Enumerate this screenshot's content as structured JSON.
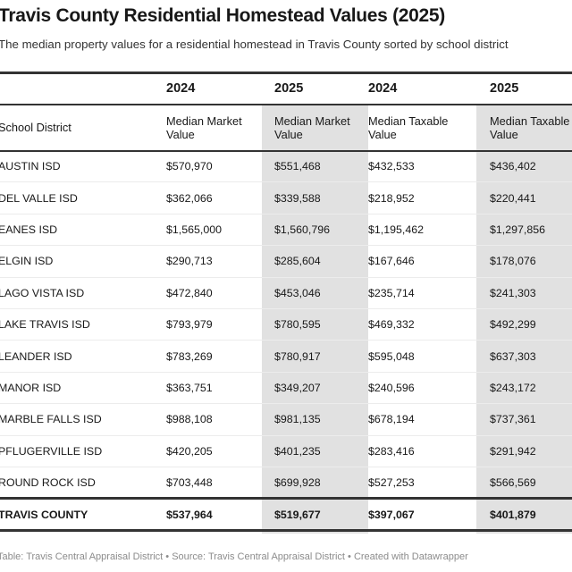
{
  "title": "Travis County Residential Homestead Values (2025)",
  "subtitle": "The median property values for a residential homestead in Travis County sorted by school district",
  "chart_data": {
    "type": "table",
    "years": [
      "",
      "2024",
      "2025",
      "2024",
      "2025"
    ],
    "columns": [
      "School District",
      "Median Market Value",
      "Median Market Value",
      "Median Taxable Value",
      "Median Taxable Value"
    ],
    "highlight_color": "#e1e1e1",
    "rows": [
      [
        "AUSTIN ISD",
        "$570,970",
        "$551,468",
        "$432,533",
        "$436,402"
      ],
      [
        "DEL VALLE ISD",
        "$362,066",
        "$339,588",
        "$218,952",
        "$220,441"
      ],
      [
        "EANES ISD",
        "$1,565,000",
        "$1,560,796",
        "$1,195,462",
        "$1,297,856"
      ],
      [
        "ELGIN ISD",
        "$290,713",
        "$285,604",
        "$167,646",
        "$178,076"
      ],
      [
        "LAGO VISTA ISD",
        "$472,840",
        "$453,046",
        "$235,714",
        "$241,303"
      ],
      [
        "LAKE TRAVIS ISD",
        "$793,979",
        "$780,595",
        "$469,332",
        "$492,299"
      ],
      [
        "LEANDER ISD",
        "$783,269",
        "$780,917",
        "$595,048",
        "$637,303"
      ],
      [
        "MANOR ISD",
        "$363,751",
        "$349,207",
        "$240,596",
        "$243,172"
      ],
      [
        "MARBLE FALLS ISD",
        "$988,108",
        "$981,135",
        "$678,194",
        "$737,361"
      ],
      [
        "PFLUGERVILLE ISD",
        "$420,205",
        "$401,235",
        "$283,416",
        "$291,942"
      ],
      [
        "ROUND ROCK ISD",
        "$703,448",
        "$699,928",
        "$527,253",
        "$566,569"
      ]
    ],
    "total": [
      "TRAVIS COUNTY",
      "$537,964",
      "$519,677",
      "$397,067",
      "$401,879"
    ]
  },
  "footer": "Table: Travis Central Appraisal District • Source: Travis Central Appraisal District • Created with Datawrapper"
}
